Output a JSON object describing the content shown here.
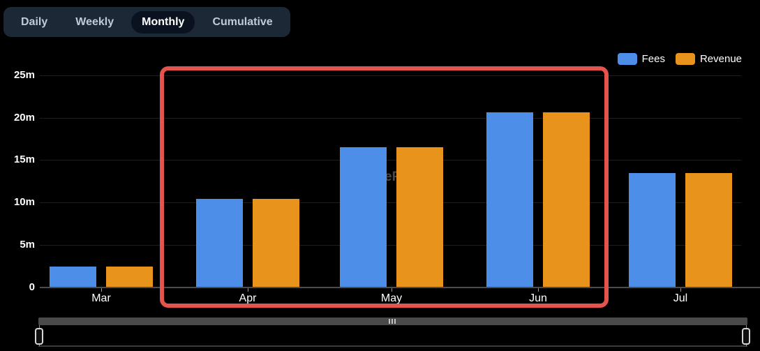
{
  "tabs": {
    "items": [
      {
        "label": "Daily",
        "active": false
      },
      {
        "label": "Weekly",
        "active": false
      },
      {
        "label": "Monthly",
        "active": true
      },
      {
        "label": "Cumulative",
        "active": false
      }
    ]
  },
  "legend": {
    "items": [
      {
        "label": "Fees",
        "color": "#4d8ee9"
      },
      {
        "label": "Revenue",
        "color": "#e8941c"
      }
    ]
  },
  "chart_data": {
    "type": "bar",
    "categories": [
      "Mar",
      "Apr",
      "May",
      "Jun",
      "Jul"
    ],
    "series": [
      {
        "name": "Fees",
        "color": "#4d8ee9",
        "values": [
          2.4,
          10.4,
          16.5,
          20.6,
          13.5
        ]
      },
      {
        "name": "Revenue",
        "color": "#e8941c",
        "values": [
          2.4,
          10.4,
          16.5,
          20.6,
          13.5
        ]
      }
    ],
    "value_unit": "millions",
    "ytick_labels": [
      "25m",
      "20m",
      "15m",
      "10m",
      "5m",
      "0"
    ],
    "ytick_values": [
      25,
      20,
      15,
      10,
      5,
      0
    ],
    "ylim": [
      0,
      25.7
    ],
    "grid": true,
    "legend_position": "top-right",
    "background": "#000000",
    "annotation": {
      "shape": "rectangle",
      "color": "#e4534e",
      "highlighted_categories": [
        "Apr",
        "May",
        "Jun"
      ]
    }
  },
  "watermark": {
    "visible_text": "eF"
  },
  "colors": {
    "tabbar_bg": "#1d2836",
    "active_tab_bg": "#0a111f",
    "gridline": "#1f1f1f",
    "axis": "#4d4d4d"
  }
}
